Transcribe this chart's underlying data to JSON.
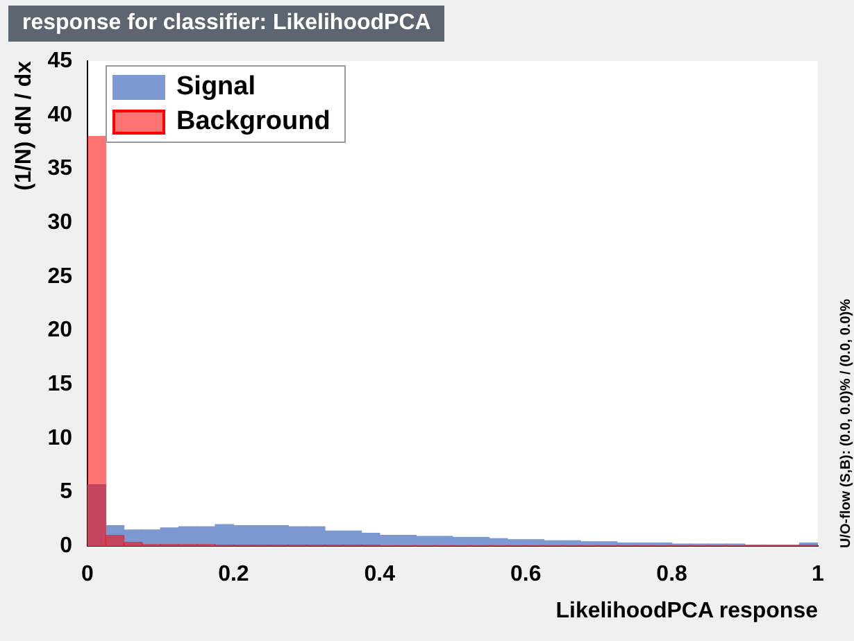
{
  "chart_data": {
    "type": "histogram",
    "title": "response for classifier: LikelihoodPCA",
    "xlabel": "LikelihoodPCA response",
    "ylabel": "(1/N) dN / dx",
    "bins": [
      0,
      0.025,
      0.05,
      0.075,
      0.1,
      0.125,
      0.15,
      0.175,
      0.2,
      0.225,
      0.25,
      0.275,
      0.3,
      0.325,
      0.35,
      0.375,
      0.4,
      0.425,
      0.45,
      0.475,
      0.5,
      0.525,
      0.55,
      0.575,
      0.6,
      0.625,
      0.65,
      0.675,
      0.7,
      0.725,
      0.75,
      0.775,
      0.8,
      0.825,
      0.85,
      0.875,
      0.9,
      0.925,
      0.95,
      0.975,
      1
    ],
    "series": [
      {
        "name": "Signal",
        "color": "#7d99d1",
        "values": [
          5.7,
          1.9,
          1.5,
          1.5,
          1.7,
          1.8,
          1.8,
          2.0,
          1.9,
          1.9,
          1.9,
          1.8,
          1.8,
          1.4,
          1.4,
          1.2,
          1.0,
          1.0,
          0.9,
          0.9,
          0.8,
          0.8,
          0.7,
          0.6,
          0.6,
          0.5,
          0.5,
          0.4,
          0.4,
          0.3,
          0.3,
          0.3,
          0.2,
          0.2,
          0.2,
          0.2,
          0.1,
          0.1,
          0.1,
          0.3
        ]
      },
      {
        "name": "Background",
        "color": "#ff0000",
        "values": [
          38,
          1.0,
          0.35,
          0.15,
          0.15,
          0.15,
          0.15,
          0.1,
          0.1,
          0.1,
          0.1,
          0.1,
          0.1,
          0.1,
          0.1,
          0.1,
          0.05,
          0.05,
          0.05,
          0.05,
          0.05,
          0.05,
          0.05,
          0.05,
          0.05,
          0.05,
          0.05,
          0.05,
          0.05,
          0.05,
          0.05,
          0.05,
          0.05,
          0.05,
          0.05,
          0.05,
          0.05,
          0.05,
          0.05,
          0.1
        ]
      }
    ],
    "xlim": [
      0,
      1
    ],
    "xticks": [
      0,
      0.2,
      0.4,
      0.6,
      0.8,
      1
    ],
    "ylim": [
      0,
      45
    ],
    "yticks": [
      0,
      5,
      10,
      15,
      20,
      25,
      30,
      35,
      40,
      45
    ],
    "grid": false,
    "legend": "top left",
    "annotations": [
      "U/O-flow (S,B): (0.0, 0.0)% / (0.0, 0.0)%"
    ]
  }
}
